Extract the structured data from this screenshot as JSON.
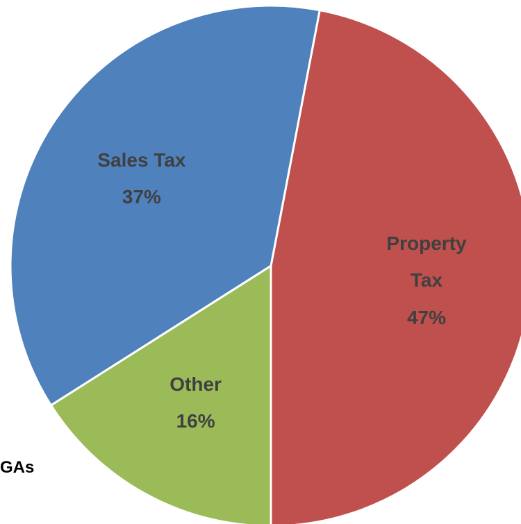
{
  "chart_data": {
    "type": "pie",
    "categories": [
      "Property Tax",
      "Other",
      "Sales Tax"
    ],
    "values": [
      47,
      16,
      37
    ],
    "value_labels": [
      "47%",
      "16%",
      "37%"
    ],
    "colors": [
      "#c0504d",
      "#9bbb59",
      "#4f81bd"
    ],
    "annotation": "GAs"
  }
}
